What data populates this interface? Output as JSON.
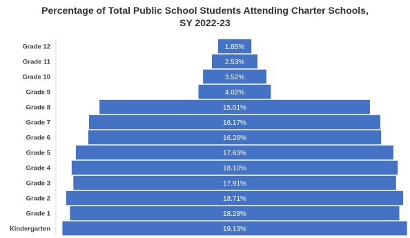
{
  "title": {
    "line1": "Percentage of Total Public School Students Attending Charter Schools,",
    "line2": "SY 2022-23"
  },
  "colors": {
    "bar": "#4472c4",
    "bar_label": "#ffffff",
    "axis_label": "#404040",
    "axis_line": "#d9d9d9"
  },
  "chart_data": {
    "type": "bar",
    "orientation": "horizontal-centered",
    "title": "Percentage of Total Public School Students Attending Charter Schools, SY 2022-23",
    "categories": [
      "Grade 12",
      "Grade 11",
      "Grade 10",
      "Grade 9",
      "Grade 8",
      "Grade 7",
      "Grade 6",
      "Grade 5",
      "Grade 4",
      "Grade 3",
      "Grade 2",
      "Grade 1",
      "Kindergarten"
    ],
    "values": [
      1.85,
      2.53,
      3.52,
      4.02,
      15.01,
      16.17,
      16.26,
      17.63,
      18.1,
      17.91,
      18.71,
      18.28,
      19.13
    ],
    "value_labels": [
      "1.85%",
      "2.53%",
      "3.52%",
      "4.02%",
      "15.01%",
      "16.17%",
      "16.26%",
      "17.63%",
      "18.10%",
      "17.91%",
      "18.71%",
      "18.28%",
      "19.13%"
    ],
    "unit": "%",
    "xlabel": "",
    "ylabel": "",
    "grid": false,
    "legend": "none"
  }
}
